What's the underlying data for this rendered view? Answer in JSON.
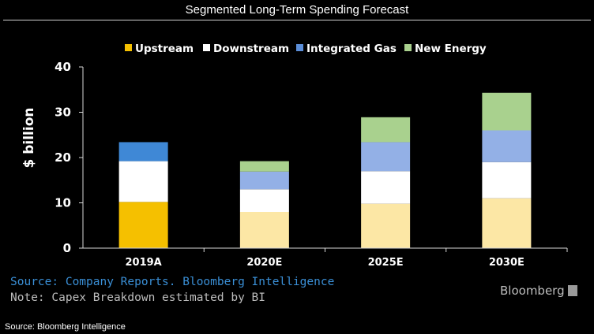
{
  "page": {
    "title": "Segmented Long-Term Spending Forecast",
    "source_line": "Source: Company Reports. Bloomberg Intelligence",
    "note_line": "Note: Capex Breakdown estimated by BI",
    "brand": "Bloomberg",
    "footer": "Source: Bloomberg Intelligence"
  },
  "chart_data": {
    "type": "bar",
    "stacked": true,
    "title": "",
    "xlabel": "",
    "ylabel": "$ billion",
    "ylim": [
      0,
      40
    ],
    "yticks": [
      0,
      10,
      20,
      30,
      40
    ],
    "grid": false,
    "legend_position": "top",
    "categories": [
      "2019A",
      "2020E",
      "2025E",
      "2030E"
    ],
    "series": [
      {
        "name": "Upstream",
        "values": [
          10.2,
          8.0,
          9.8,
          11.0
        ],
        "colors": [
          "#f5c000",
          "#fce7a5",
          "#fce7a5",
          "#fce7a5"
        ],
        "legend_color": "#f5c000"
      },
      {
        "name": "Downstream",
        "values": [
          9.0,
          5.0,
          7.2,
          8.0
        ],
        "colors": [
          "#ffffff",
          "#ffffff",
          "#ffffff",
          "#ffffff"
        ],
        "legend_color": "#ffffff"
      },
      {
        "name": "Integrated Gas",
        "values": [
          4.2,
          3.9,
          6.4,
          7.0
        ],
        "colors": [
          "#3f88d6",
          "#93b0e6",
          "#93b0e6",
          "#93b0e6"
        ],
        "legend_color": "#5b8ed8"
      },
      {
        "name": "New Energy",
        "values": [
          0,
          2.3,
          5.5,
          8.3
        ],
        "colors": [
          "#a9d18e",
          "#a9d18e",
          "#a9d18e",
          "#a9d18e"
        ],
        "legend_color": "#a9d18e"
      }
    ]
  }
}
